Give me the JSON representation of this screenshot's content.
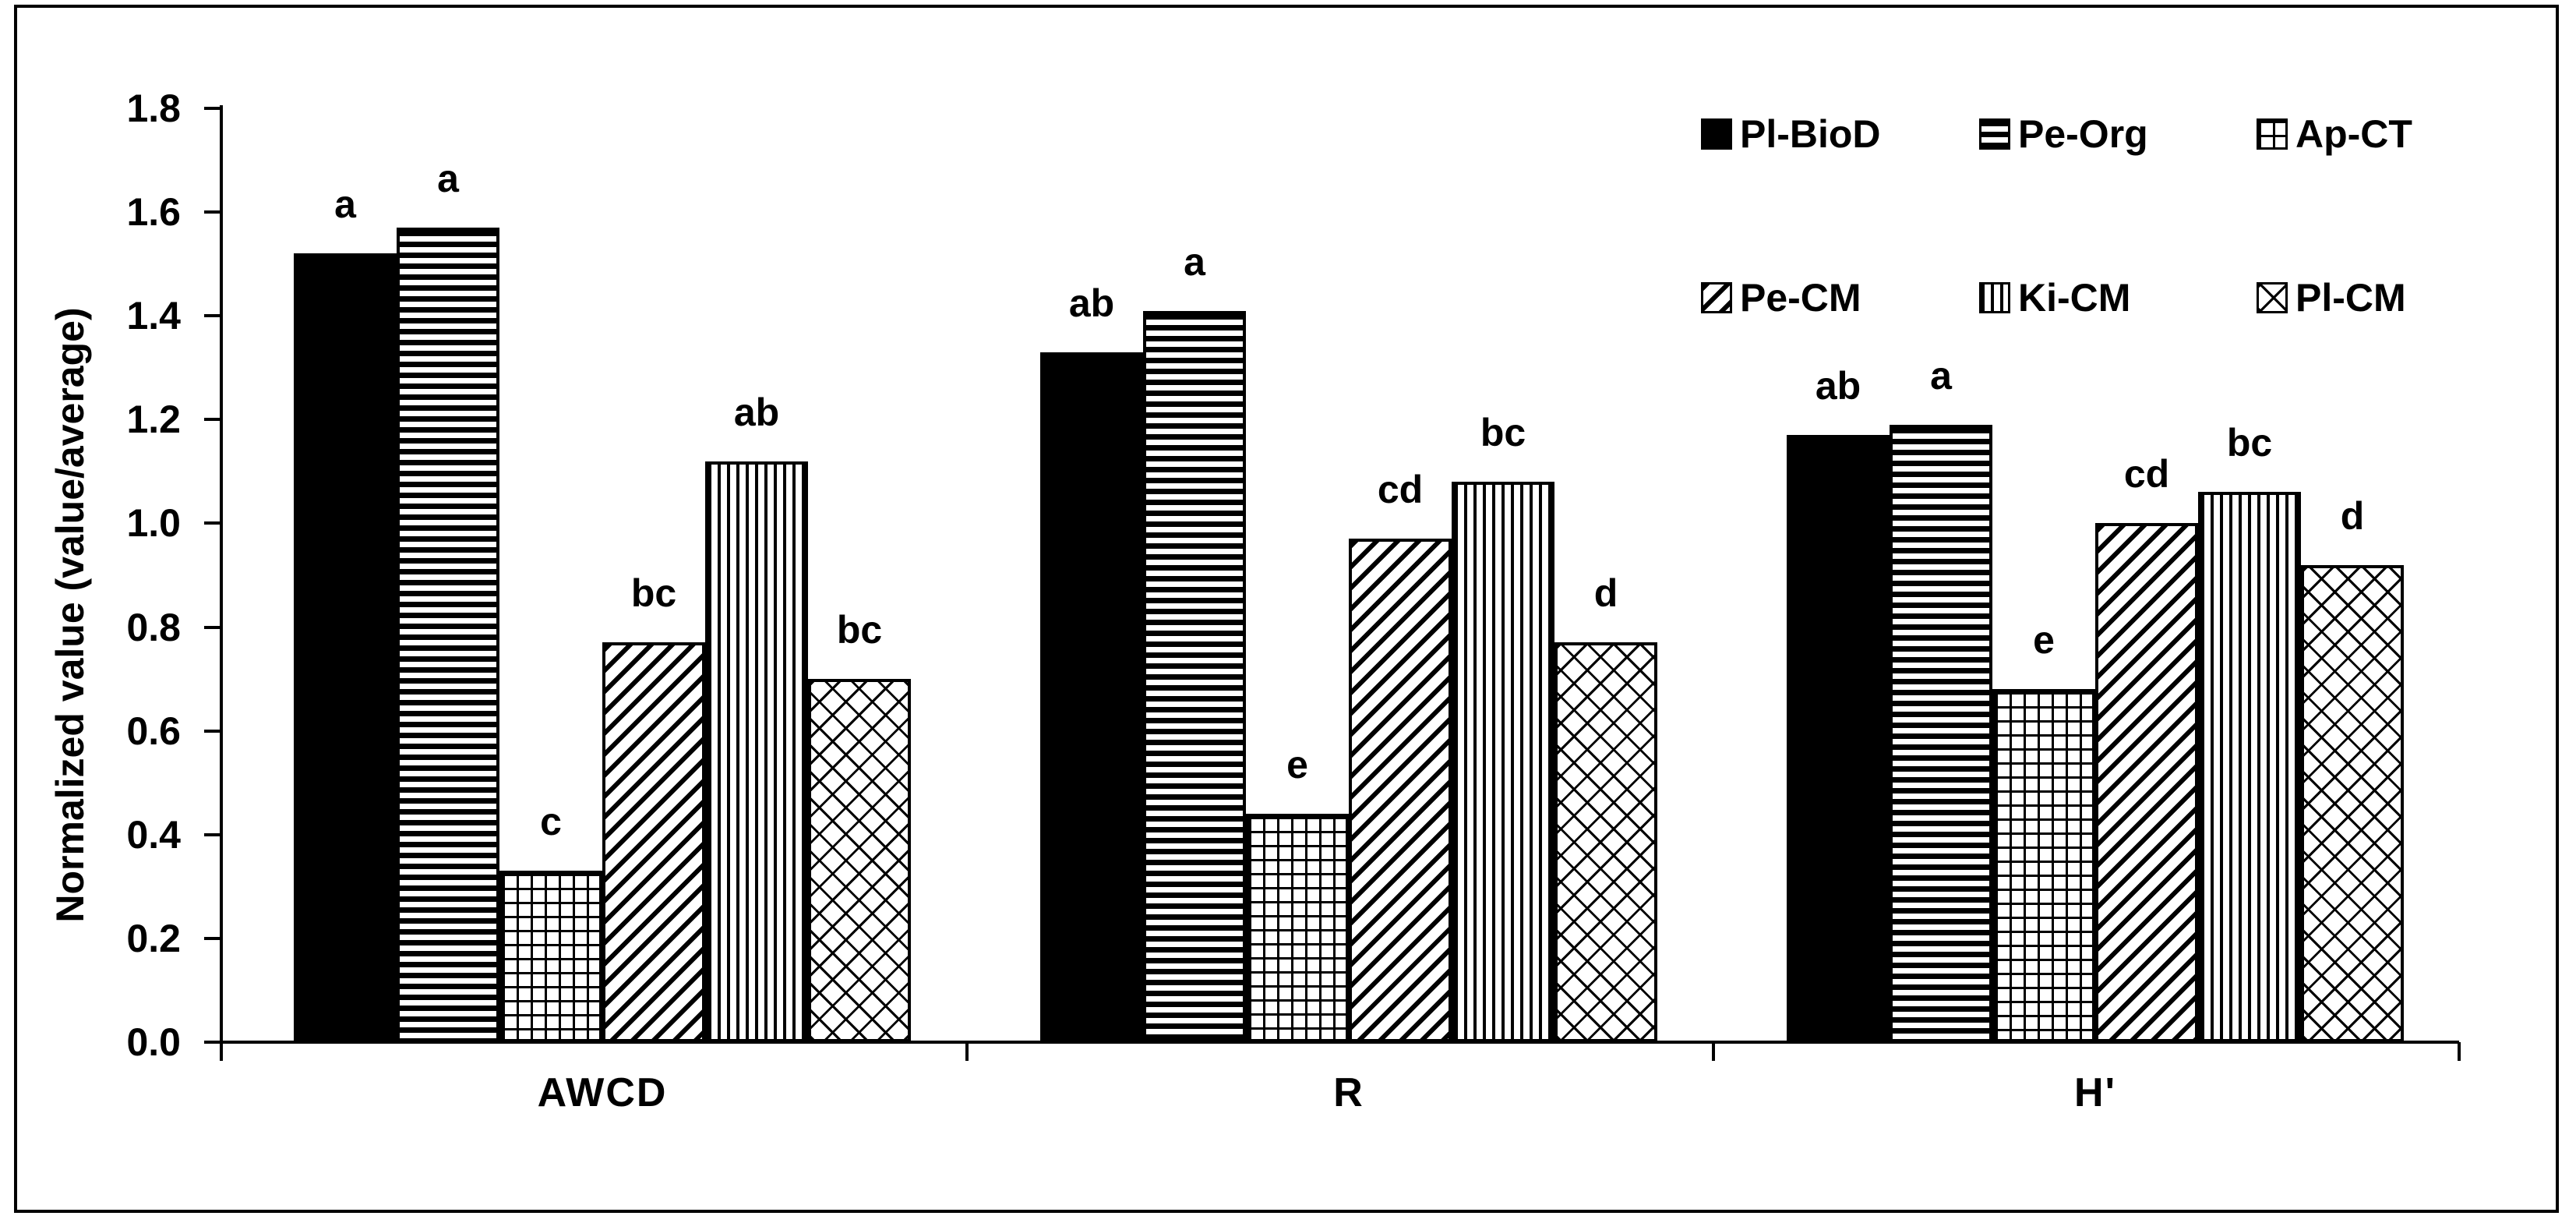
{
  "chart_data": {
    "type": "bar",
    "title": "",
    "xlabel": "",
    "ylabel": "Normalized value (value/average)",
    "ylim": [
      0.0,
      1.8
    ],
    "ytick_step": 0.2,
    "yticks": [
      "0.0",
      "0.2",
      "0.4",
      "0.6",
      "0.8",
      "1.0",
      "1.2",
      "1.4",
      "1.6",
      "1.8"
    ],
    "grid": false,
    "legend_position": "top-right",
    "legend_rows": [
      [
        "Pl-BioD",
        "Pe-Org",
        "Ap-CT"
      ],
      [
        "Pe-CM",
        "Ki-CM",
        "Pl-CM"
      ]
    ],
    "categories": [
      "AWCD",
      "R",
      "H'"
    ],
    "bar_color": "#000000",
    "bar_fill_background": "#ffffff",
    "series": [
      {
        "name": "Pl-BioD",
        "pattern": "solid-black",
        "values": [
          1.52,
          1.33,
          1.17
        ],
        "letters": [
          "a",
          "ab",
          "ab"
        ]
      },
      {
        "name": "Pe-Org",
        "pattern": "horizontal-stripes",
        "values": [
          1.57,
          1.41,
          1.19
        ],
        "letters": [
          "a",
          "a",
          "a"
        ]
      },
      {
        "name": "Ap-CT",
        "pattern": "grid",
        "values": [
          0.33,
          0.44,
          0.68
        ],
        "letters": [
          "c",
          "e",
          "e"
        ]
      },
      {
        "name": "Pe-CM",
        "pattern": "diagonal-stripes",
        "values": [
          0.77,
          0.97,
          1.0
        ],
        "letters": [
          "bc",
          "cd",
          "cd"
        ]
      },
      {
        "name": "Ki-CM",
        "pattern": "vertical-stripes",
        "values": [
          1.12,
          1.08,
          1.06
        ],
        "letters": [
          "ab",
          "bc",
          "bc"
        ]
      },
      {
        "name": "Pl-CM",
        "pattern": "crosshatch",
        "values": [
          0.7,
          0.77,
          0.92
        ],
        "letters": [
          "bc",
          "d",
          "d"
        ]
      }
    ]
  }
}
